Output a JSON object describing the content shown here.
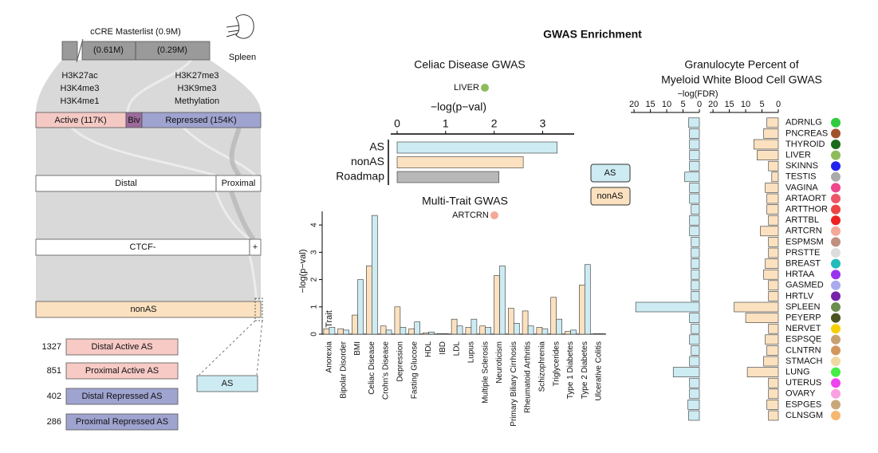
{
  "title": "GWAS Enrichment",
  "diagram": {
    "masterlist": {
      "title": "cCRE Masterlist (0.9M)",
      "parts": [
        "(0.61M)",
        "(0.29M)"
      ],
      "tissue": "Spleen"
    },
    "marks": {
      "active": [
        "H3K27ac",
        "H3K4me3",
        "H3K4me1"
      ],
      "repressed": [
        "H3K27me3",
        "H3K9me3",
        "Methylation"
      ]
    },
    "layers": [
      [
        "Active (117K)",
        "Biv",
        "Repressed (154K)"
      ],
      [
        "Distal",
        "Proximal"
      ],
      [
        "CTCF-",
        "+"
      ],
      [
        "nonAS"
      ]
    ],
    "as_box": "AS",
    "subsets": [
      {
        "count": 1327,
        "label": "Distal Active AS"
      },
      {
        "count": 851,
        "label": "Proximal Active AS"
      },
      {
        "count": 402,
        "label": "Distal Repressed AS"
      },
      {
        "count": 286,
        "label": "Proximal Repressed AS"
      }
    ]
  },
  "chart_data": [
    {
      "type": "hbar",
      "title": "Celiac Disease GWAS",
      "subtitle": "LIVER",
      "subtitle_color": "#8fbc5a",
      "xlabel": "−log(p−val)",
      "categories": [
        "AS",
        "nonAS",
        "Roadmap"
      ],
      "values": [
        3.3,
        2.6,
        2.1
      ],
      "colors": [
        "#cdebf2",
        "#fbe1bf",
        "#b8b8b8"
      ],
      "xlim": [
        0,
        3.65
      ],
      "xticks": [
        0,
        1,
        2,
        3
      ]
    },
    {
      "type": "bar",
      "title": "Multi-Trait GWAS",
      "subtitle": "ARTCRN",
      "subtitle_color": "#f4a898",
      "xlabel": "Trait",
      "ylabel": "−log(p−val)",
      "categories": [
        "Anorexia",
        "Bipolar Disorder",
        "BMI",
        "Celiac Disease",
        "Crohn's Disease",
        "Depression",
        "Fasting Glucose",
        "HDL",
        "IBD",
        "LDL",
        "Lupus",
        "Multiple Sclerosis",
        "Neuroticism",
        "Primary Biliary Cirrhosis",
        "Rheumatoid Arthritis",
        "Schizophrenia",
        "Triglycerides",
        "Type 1 Diabetes",
        "Type 2 Diabetes",
        "Ulcerative Colitis"
      ],
      "series": [
        {
          "name": "AS",
          "color": "#cdebf2",
          "values": [
            0.25,
            0.15,
            2.0,
            4.35,
            0.15,
            0.25,
            0.45,
            0.08,
            0.02,
            0.3,
            0.55,
            0.25,
            2.5,
            0.4,
            0.3,
            0.2,
            0.55,
            0.15,
            2.55,
            0.02
          ]
        },
        {
          "name": "nonAS",
          "color": "#fbe1bf",
          "values": [
            0.2,
            0.2,
            0.7,
            2.5,
            0.3,
            1.0,
            0.2,
            0.05,
            0.02,
            0.55,
            0.25,
            0.3,
            2.15,
            0.95,
            0.85,
            0.25,
            1.35,
            0.1,
            1.8,
            0.02
          ]
        }
      ],
      "ylim": [
        0,
        4.5
      ],
      "yticks": [
        0,
        1,
        2,
        3,
        4
      ]
    },
    {
      "type": "hbar-panels",
      "title": [
        "Granulocyte Percent of",
        "Myeloid White Blood Cell GWAS"
      ],
      "xlabel": "−log(FDR)",
      "categories": [
        "ADRNLG",
        "PNCREAS",
        "THYROID",
        "LIVER",
        "SKINNS",
        "TESTIS",
        "VAGINA",
        "ARTAORT",
        "ARTTHOR",
        "ARTTBL",
        "ARTCRN",
        "ESPMSM",
        "PRSTTE",
        "BREAST",
        "HRTAA",
        "GASMED",
        "HRTLV",
        "SPLEEN",
        "PEYERP",
        "NERVET",
        "ESPSQE",
        "CLNTRN",
        "STMACH",
        "LUNG",
        "UTERUS",
        "OVARY",
        "ESPGES",
        "CLNSGM"
      ],
      "category_colors": [
        "#2ecc40",
        "#a0522d",
        "#1a6b1a",
        "#8fbc5a",
        "#2222ee",
        "#aaaaaa",
        "#f0468c",
        "#ee5566",
        "#ee4444",
        "#ee2222",
        "#f4a898",
        "#c09080",
        "#dddddd",
        "#22bbbb",
        "#9933ee",
        "#aaaaee",
        "#7722aa",
        "#6b8e4e",
        "#4b5320",
        "#f5d000",
        "#c8a070",
        "#d4965a",
        "#f0d8a0",
        "#44ee44",
        "#ee44ee",
        "#f8a0e0",
        "#c8a878",
        "#f4b870"
      ],
      "series": [
        {
          "name": "AS",
          "color": "#cdebf2",
          "values": [
            3.3,
            3.0,
            3.0,
            3.0,
            3.0,
            4.5,
            3.0,
            3.0,
            2.5,
            3.0,
            3.0,
            2.5,
            2.5,
            2.5,
            2.5,
            2.5,
            2.5,
            19.5,
            3.0,
            2.5,
            3.0,
            2.5,
            3.0,
            8.0,
            3.0,
            3.0,
            3.5,
            3.3
          ]
        },
        {
          "name": "nonAS",
          "color": "#fbe1bf",
          "values": [
            3.5,
            4.5,
            7.5,
            6.5,
            3.0,
            2.0,
            4.0,
            3.5,
            3.5,
            3.0,
            5.5,
            3.0,
            3.0,
            4.0,
            4.5,
            3.0,
            3.0,
            13.5,
            10.0,
            3.0,
            4.0,
            3.5,
            4.5,
            9.5,
            3.0,
            3.0,
            3.5,
            3.0
          ]
        }
      ],
      "xlim": [
        21,
        0
      ],
      "xticks": [
        20,
        15,
        10,
        5,
        0
      ]
    }
  ]
}
